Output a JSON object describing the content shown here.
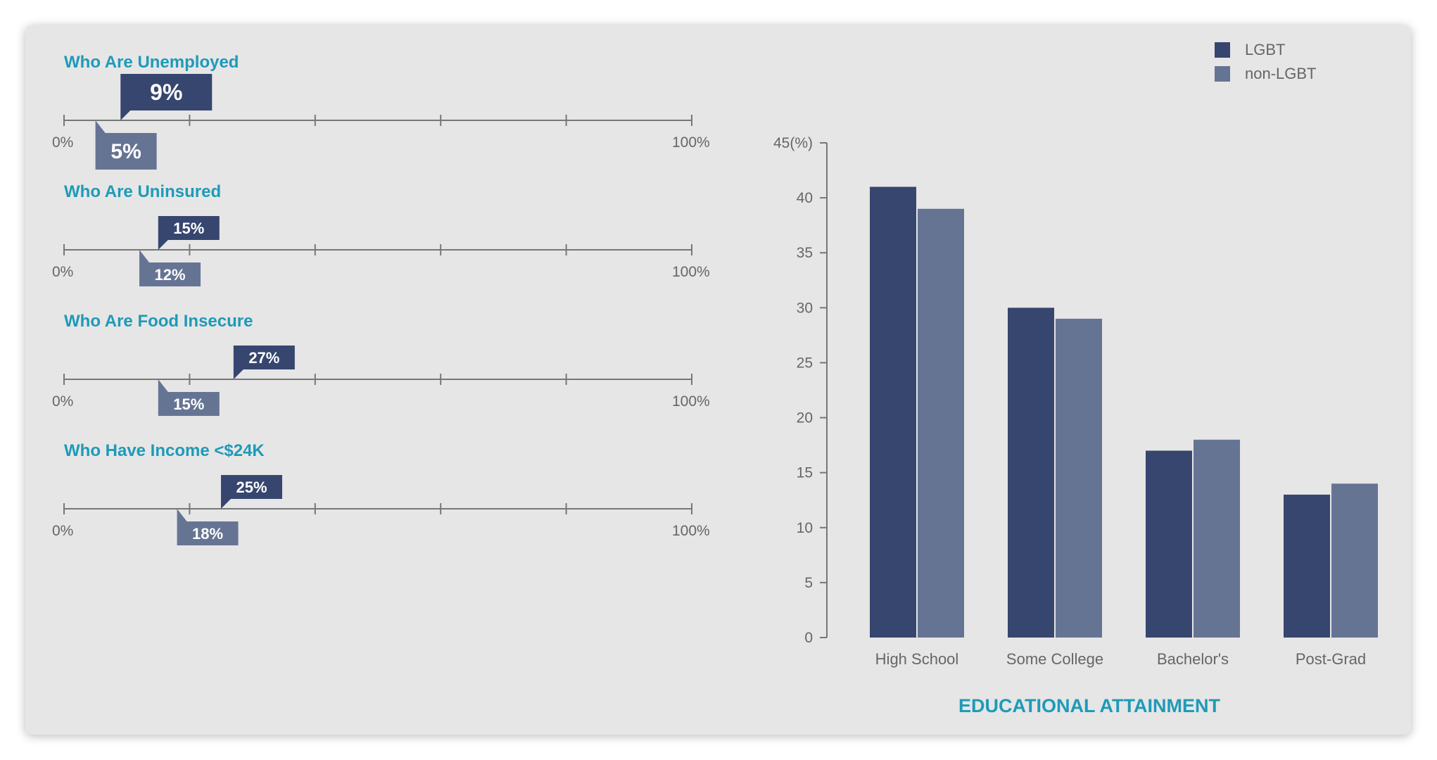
{
  "colors": {
    "lgbt": "#36466f",
    "non_lgbt": "#667494",
    "accent": "#1e9ab8",
    "axis": "#777777",
    "text": "#666666",
    "card": "#e6e6e6"
  },
  "chart_data": [
    {
      "type": "range-markers",
      "scale_min_label": "0%",
      "scale_max_label": "100%",
      "scale": [
        0,
        100
      ],
      "rows": [
        {
          "title": "Who Are Unemployed",
          "lgbt": 9,
          "lgbt_label": "9%",
          "non_lgbt": 5,
          "non_lgbt_label": "5%"
        },
        {
          "title": "Who Are Uninsured",
          "lgbt": 15,
          "lgbt_label": "15%",
          "non_lgbt": 12,
          "non_lgbt_label": "12%"
        },
        {
          "title": "Who Are Food Insecure",
          "lgbt": 27,
          "lgbt_label": "27%",
          "non_lgbt": 15,
          "non_lgbt_label": "15%"
        },
        {
          "title": "Who Have Income <$24K",
          "lgbt": 25,
          "lgbt_label": "25%",
          "non_lgbt": 18,
          "non_lgbt_label": "18%"
        }
      ]
    },
    {
      "type": "bar",
      "title": "EDUCATIONAL ATTAINMENT",
      "categories": [
        "High School",
        "Some College",
        "Bachelor's",
        "Post-Grad"
      ],
      "series": [
        {
          "name": "LGBT",
          "values": [
            41,
            30,
            17,
            13
          ]
        },
        {
          "name": "non-LGBT",
          "values": [
            39,
            29,
            18,
            14
          ]
        }
      ],
      "ylim": [
        0,
        45
      ],
      "yticks": [
        0,
        5,
        10,
        15,
        20,
        25,
        30,
        35,
        40
      ],
      "ytick_labels": [
        "0",
        "5",
        "10",
        "15",
        "20",
        "25",
        "30",
        "35",
        "40"
      ],
      "ymax_label": "45(%)",
      "legend": "top-right"
    }
  ]
}
